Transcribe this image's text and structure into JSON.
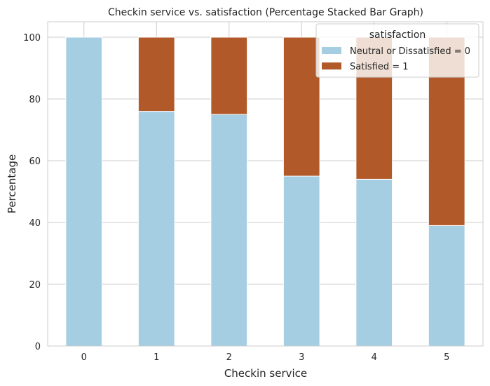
{
  "chart_data": {
    "type": "bar",
    "stacked": true,
    "title": "Checkin service vs. satisfaction (Percentage Stacked Bar Graph)",
    "xlabel": "Checkin service",
    "ylabel": "Percentage",
    "categories": [
      "0",
      "1",
      "2",
      "3",
      "4",
      "5"
    ],
    "series": [
      {
        "name": "Neutral or Dissatisfied = 0",
        "color": "#a6cee3",
        "values": [
          100,
          76,
          75,
          55,
          54,
          39
        ]
      },
      {
        "name": "Satisfied = 1",
        "color": "#b15928",
        "values": [
          0,
          24,
          25,
          45,
          46,
          61
        ]
      }
    ],
    "yticks": [
      0,
      20,
      40,
      60,
      80,
      100
    ],
    "ylim": [
      0,
      105
    ],
    "grid": true,
    "legend": {
      "title": "satisfaction",
      "position": "top-right"
    }
  }
}
